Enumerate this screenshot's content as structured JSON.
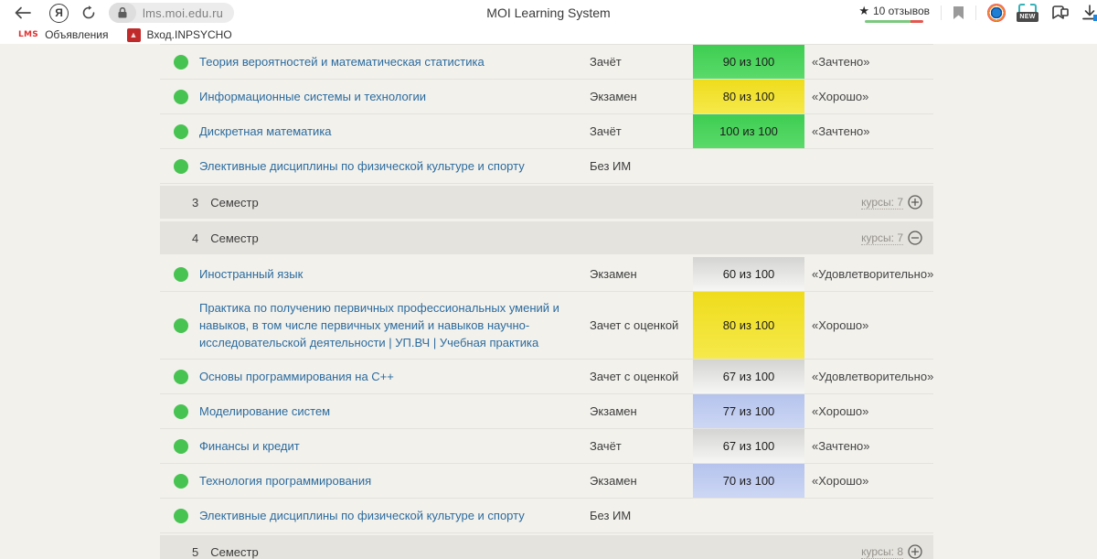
{
  "browser": {
    "page_title": "MOI Learning System",
    "url": "lms.moi.edu.ru",
    "rating_star": "★",
    "rating_text": "10 отзывов",
    "bookmarks": [
      {
        "icon_label": "LMS",
        "label": "Объявления"
      },
      {
        "label": "Вход.INPSYCHO"
      }
    ]
  },
  "colors": {
    "score_green": "#47d158",
    "score_yellow": "#f2e02b",
    "score_gray": "#dcdcda",
    "score_blue": "#bcc9ef",
    "status_dot_green": "#47c351",
    "link_blue": "#2c6b9e"
  },
  "table": {
    "courses_label": "курсы:",
    "rows": [
      {
        "kind": "course",
        "title": "Теория вероятностей и математическая статистика",
        "control": "Зачёт",
        "score": "90 из 100",
        "score_color": "green",
        "grade": "«Зачтено»"
      },
      {
        "kind": "course",
        "title": "Информационные системы и технологии",
        "control": "Экзамен",
        "score": "80 из 100",
        "score_color": "yellow",
        "grade": "«Хорошо»"
      },
      {
        "kind": "course",
        "title": "Дискретная математика",
        "control": "Зачёт",
        "score": "100 из 100",
        "score_color": "green",
        "grade": "«Зачтено»"
      },
      {
        "kind": "course",
        "title": "Элективные дисциплины по физической культуре и спорту",
        "control": "Без ИМ",
        "score": "",
        "score_color": "",
        "grade": ""
      },
      {
        "kind": "semester",
        "number": "3",
        "label": "Семестр",
        "courses_count": "7",
        "toggle": "plus"
      },
      {
        "kind": "semester",
        "number": "4",
        "label": "Семестр",
        "courses_count": "7",
        "toggle": "minus"
      },
      {
        "kind": "course",
        "title": "Иностранный язык",
        "control": "Экзамен",
        "score": "60 из 100",
        "score_color": "gray",
        "grade": "«Удовлетворительно»"
      },
      {
        "kind": "course",
        "title": "Практика по получению первичных профессиональных умений и навыков, в том числе первичных умений и навыков научно-исследовательской деятельности | УП.ВЧ | Учебная практика",
        "control": "Зачет с оценкой",
        "score": "80 из 100",
        "score_color": "yellow",
        "grade": "«Хорошо»"
      },
      {
        "kind": "course",
        "title": "Основы программирования на C++",
        "control": "Зачет с оценкой",
        "score": "67 из 100",
        "score_color": "gray",
        "grade": "«Удовлетворительно»"
      },
      {
        "kind": "course",
        "title": "Моделирование систем",
        "control": "Экзамен",
        "score": "77 из 100",
        "score_color": "blue",
        "grade": "«Хорошо»"
      },
      {
        "kind": "course",
        "title": "Финансы и кредит",
        "control": "Зачёт",
        "score": "67 из 100",
        "score_color": "gray",
        "grade": "«Зачтено»"
      },
      {
        "kind": "course",
        "title": "Технология программирования",
        "control": "Экзамен",
        "score": "70 из 100",
        "score_color": "blue",
        "grade": "«Хорошо»"
      },
      {
        "kind": "course",
        "title": "Элективные дисциплины по физической культуре и спорту",
        "control": "Без ИМ",
        "score": "",
        "score_color": "",
        "grade": ""
      },
      {
        "kind": "semester",
        "number": "5",
        "label": "Семестр",
        "courses_count": "8",
        "toggle": "plus"
      }
    ]
  }
}
